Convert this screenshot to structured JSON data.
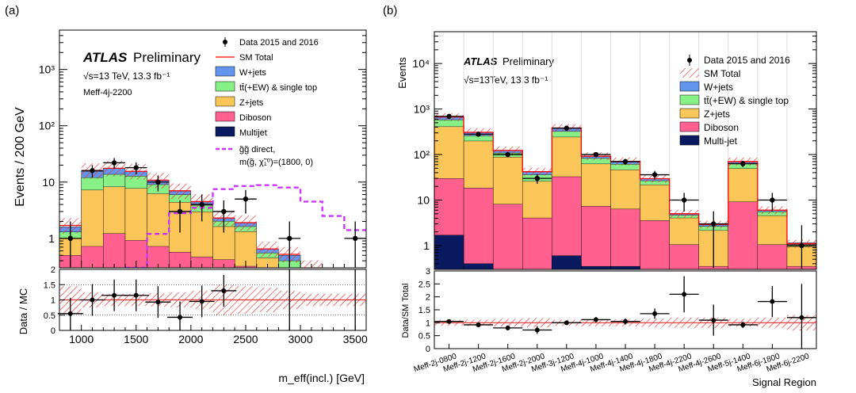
{
  "chart_data": [
    {
      "type": "bar",
      "panel_label": "(a)",
      "brand_bold": "ATLAS",
      "brand_regular": "Preliminary",
      "energy_label": "√s=13 TeV, 13.3 fb⁻¹",
      "region_label": "Meff-4j-2200",
      "ylabel": "Events / 200 GeV",
      "xlabel": "m_eff(incl.) [GeV]",
      "ratio_ylabel": "Data / MC",
      "log_y": true,
      "ylim": [
        0.3,
        5000
      ],
      "xlim": [
        800,
        3600
      ],
      "x_ticks": [
        "1000",
        "1500",
        "2000",
        "2500",
        "3000",
        "3500"
      ],
      "y_ticks": [
        "1",
        "10",
        "10²",
        "10³"
      ],
      "ratio_ylim": [
        0,
        2
      ],
      "ratio_ticks": [
        "0",
        "0.5",
        "1",
        "1.5",
        "2"
      ],
      "bin_edges": [
        800,
        1000,
        1200,
        1400,
        1600,
        1800,
        2000,
        2200,
        2400,
        2600,
        2800,
        3000,
        3200,
        3400,
        3600
      ],
      "stack_series": [
        {
          "name": "Multijet",
          "color": "#0a1a60",
          "values": [
            0,
            0.02,
            0.02,
            0.02,
            0.02,
            0.02,
            0.02,
            0.02,
            0.02,
            0,
            0,
            0,
            0,
            0
          ]
        },
        {
          "name": "Diboson",
          "color": "#ff6090",
          "values": [
            0.5,
            0.7,
            1.2,
            0.9,
            0.7,
            0.55,
            0.45,
            0.4,
            0.3,
            0.2,
            0.12,
            0.1,
            0,
            0
          ]
        },
        {
          "name": "Z+jets",
          "color": "#fac65a",
          "values": [
            0.5,
            6.5,
            7.0,
            6.8,
            5.5,
            3.8,
            2.5,
            1.2,
            1.0,
            0.25,
            0.18,
            0.1,
            0,
            0
          ]
        },
        {
          "name": "tt̄(+EW) & single top",
          "color": "#87f187",
          "values": [
            0.3,
            4.8,
            5.5,
            5.0,
            2.8,
            1.6,
            0.9,
            0.4,
            0.3,
            0.1,
            0.1,
            0,
            0,
            0
          ]
        },
        {
          "name": "W+jets",
          "color": "#6495ed",
          "values": [
            0.3,
            3.5,
            3.8,
            2.8,
            1.8,
            1.0,
            0.6,
            0.3,
            0.3,
            0.1,
            0.1,
            0,
            0,
            0
          ]
        }
      ],
      "sm_total": {
        "name": "SM Total",
        "color": "#ff0000",
        "values": [
          1.7,
          16.0,
          17.6,
          15.5,
          10.8,
          7.0,
          4.5,
          2.3,
          1.9,
          0.65,
          0.52,
          0.3,
          0,
          0
        ]
      },
      "data": {
        "name": "Data 2015 and 2016",
        "x": [
          900,
          1100,
          1300,
          1500,
          1700,
          1900,
          2100,
          2300,
          2500,
          2900,
          3500
        ],
        "y": [
          1,
          16,
          22,
          18,
          10,
          3,
          4,
          3,
          5,
          1,
          1
        ]
      },
      "signal": {
        "name": "g̃g̃ direct,",
        "name2": "m(g̃, χ̃₁⁰)=(1800, 0)",
        "color": "#cc33ff",
        "edges": [
          1400,
          1600,
          1800,
          2000,
          2200,
          2400,
          2600,
          2800,
          3000,
          3200,
          3400,
          3600
        ],
        "values": [
          0.3,
          1.2,
          2.8,
          3.5,
          7.5,
          8.5,
          8.8,
          8.0,
          4.5,
          2.5,
          1.4
        ]
      },
      "ratio": {
        "x": [
          900,
          1100,
          1300,
          1500,
          1700,
          1900,
          2100,
          2300
        ],
        "y": [
          0.55,
          1.0,
          1.15,
          1.15,
          0.93,
          0.43,
          0.95,
          1.3
        ]
      }
    },
    {
      "type": "bar",
      "panel_label": "(b)",
      "brand_bold": "ATLAS",
      "brand_regular": "Preliminary",
      "energy_label": "√s=13TeV, 13.3 fb⁻¹",
      "ylabel": "Events",
      "xlabel": "Signal Region",
      "ratio_ylabel": "Data/SM Total",
      "log_y": true,
      "ylim": [
        0.3,
        50000
      ],
      "y_ticks": [
        "1",
        "10",
        "10²",
        "10³",
        "10⁴"
      ],
      "ratio_ylim": [
        0,
        3
      ],
      "ratio_ticks": [
        "0",
        "0.5",
        "1",
        "1.5",
        "2",
        "2.5",
        "3"
      ],
      "categories": [
        "Meff-2j-0800",
        "Meff-2j-1200",
        "Meff-2j-1600",
        "Meff-2j-2000",
        "Meff-3j-1200",
        "Meff-4j-1000",
        "Meff-4j-1400",
        "Meff-4j-1800",
        "Meff-4j-2200",
        "Meff-4j-2600",
        "Meff-5j-1400",
        "Meff-6j-1800",
        "Meff-6j-2200"
      ],
      "stack_series": [
        {
          "name": "Multi-jet",
          "color": "#0a1a60",
          "values": [
            1.7,
            0.4,
            0.1,
            0.05,
            0.6,
            0.35,
            0.35,
            0.05,
            0.05,
            0.05,
            0.16,
            0.05,
            0.05
          ]
        },
        {
          "name": "Diboson",
          "color": "#ff6090",
          "values": [
            28,
            18,
            8,
            4,
            32,
            7,
            6,
            3.5,
            1.0,
            0.3,
            9,
            1.0,
            0.3
          ]
        },
        {
          "name": "Z+jets",
          "color": "#fac65a",
          "values": [
            380,
            180,
            80,
            22,
            210,
            55,
            40,
            18,
            3.0,
            1.8,
            40,
            3.5,
            0.6
          ]
        },
        {
          "name": "tt̄(+EW) & single top",
          "color": "#87f187",
          "values": [
            170,
            60,
            20,
            10,
            80,
            20,
            15,
            5,
            0.6,
            0.5,
            15,
            1.0,
            0.1
          ]
        },
        {
          "name": "W+jets",
          "color": "#6495ed",
          "values": [
            90,
            50,
            15,
            6,
            60,
            10,
            10,
            3,
            0.4,
            0.3,
            6,
            0.5,
            0.1
          ]
        }
      ],
      "sm_total": {
        "name": "SM Total",
        "color": "#ff0000",
        "values": [
          670,
          308,
          123,
          42,
          383,
          92,
          71,
          29.5,
          5.0,
          2.9,
          70,
          6.0,
          1.1
        ]
      },
      "data": {
        "name": "Data 2015 and 2016",
        "y": [
          690,
          280,
          100,
          30,
          380,
          100,
          70,
          36,
          10,
          3,
          63,
          10,
          1
        ]
      },
      "ratio": {
        "y": [
          1.05,
          0.92,
          0.8,
          0.72,
          1.0,
          1.12,
          1.05,
          1.35,
          2.1,
          1.1,
          0.92,
          1.82,
          1.2
        ]
      }
    }
  ]
}
